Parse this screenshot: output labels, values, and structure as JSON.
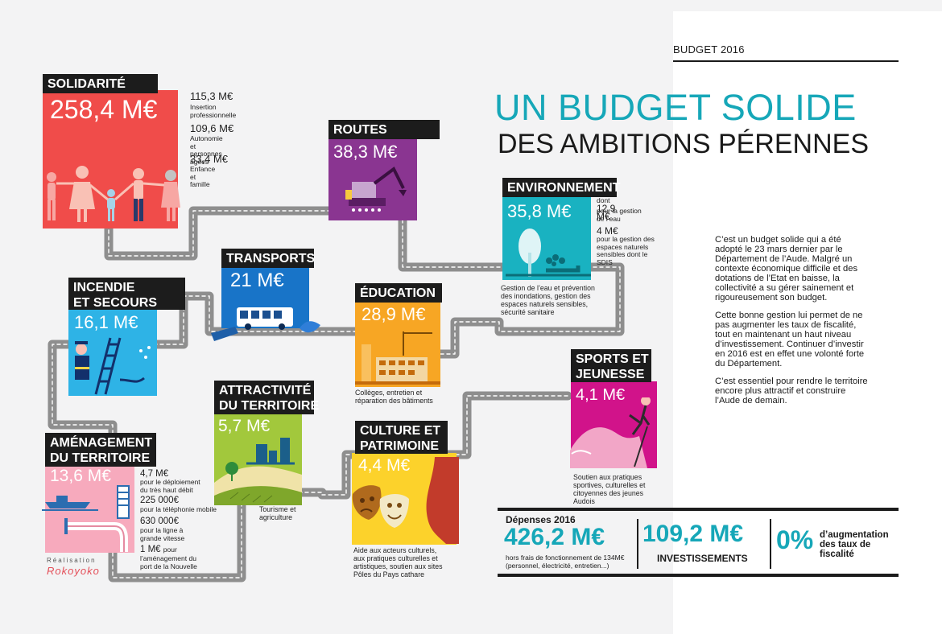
{
  "header": {
    "section": "BUDGET 2016",
    "title_line1": "UN BUDGET SOLIDE",
    "title_line2": "DES AMBITIONS PÉRENNES"
  },
  "intro": {
    "p1": "C’est un budget solide qui a été adopté le 23 mars dernier par le Département de l’Aude. Malgré un contexte économique difficile et des dotations de l’Etat en baisse, la collectivité a su gérer sainement et rigoureusement son budget.",
    "p2": "Cette bonne gestion lui permet de ne pas augmenter les taux de fiscalité, tout en maintenant un haut niveau d’investissement. Continuer d’investir en 2016 est en effet une volonté forte du Département.",
    "p3": "C’est essentiel pour rendre le territoire encore plus attractif et construire l’Aude de demain."
  },
  "colors": {
    "solidarite": "#f04c4a",
    "routes": "#8a3591",
    "environnement": "#19b2c1",
    "transports": "#1874c8",
    "education": "#f7a624",
    "incendie": "#2eb3e6",
    "sports": "#d1138a",
    "attractivite": "#a2c83c",
    "culture": "#fcd22b",
    "amenagement": "#f7aabd",
    "accent": "#16a7b8",
    "label_bg": "#1c1c1c"
  },
  "cards": {
    "solidarite": {
      "label": "SOLIDARITÉ",
      "amount": "258,4 M€",
      "sub": [
        {
          "value": "115,3 M€",
          "desc": "Insertion professionnelle"
        },
        {
          "value": "109,6 M€",
          "desc": "Autonomie et personnes âgées"
        },
        {
          "value": "33,4 M€",
          "desc": "Enfance et famille"
        }
      ]
    },
    "routes": {
      "label": "ROUTES",
      "amount": "38,3 M€"
    },
    "environnement": {
      "label": "ENVIRONNEMENT",
      "amount": "35,8 M€",
      "sub": [
        {
          "prefix": "dont ",
          "value": "12,9 M€",
          "desc": "pour la gestion de l’eau"
        },
        {
          "value": "4 M€",
          "desc": "pour la gestion des espaces naturels sensibles dont le SDIS"
        }
      ],
      "note": "Gestion de l’eau et prévention des inondations, gestion des espaces naturels sensibles, sécurité sanitaire"
    },
    "transports": {
      "label": "TRANSPORTS",
      "amount": "21 M€"
    },
    "education": {
      "label": "ÉDUCATION",
      "amount": "28,9 M€",
      "note": "Collèges, entretien et réparation des bâtiments"
    },
    "incendie": {
      "label_line1": "INCENDIE",
      "label_line2": "ET SECOURS",
      "amount": "16,1 M€"
    },
    "sports": {
      "label_line1": "SPORTS ET",
      "label_line2": "JEUNESSE",
      "amount": "4,1 M€",
      "note": "Soutien aux pratiques sportives, culturelles et citoyennes des jeunes Audois"
    },
    "attractivite": {
      "label_line1": "ATTRACTIVITÉ",
      "label_line2": "DU TERRITOIRE",
      "amount": "5,7 M€",
      "note": "Tourisme et agriculture"
    },
    "culture": {
      "label_line1": "CULTURE ET",
      "label_line2": "PATRIMOINE",
      "amount": "4,4 M€",
      "note": "Aide aux acteurs culturels, aux pratiques culturelles et artistiques, soutien aux sites Pôles du Pays cathare"
    },
    "amenagement": {
      "label_line1": "AMÉNAGEMENT",
      "label_line2": "DU TERRITOIRE",
      "amount": "13,6 M€",
      "sub": [
        {
          "value": "4,7 M€",
          "desc": "pour le déploiement du très haut débit"
        },
        {
          "value": "225 000€",
          "desc": "pour la téléphonie mobile"
        },
        {
          "value": "630 000€",
          "desc": "pour la ligne à grande vitesse"
        },
        {
          "value": "1 M€",
          "desc_inline": "pour",
          "desc": "l’aménagement du port de la Nouvelle"
        }
      ]
    }
  },
  "totals": {
    "depenses_label": "Dépenses 2016",
    "depenses_value": "426,2 M€",
    "depenses_note": "hors frais de fonctionnement de 134M€ (personnel, électricité, entretien...)",
    "invest_value": "109,2 M€",
    "invest_label": "INVESTISSEMENTS",
    "taux_value": "0%",
    "taux_label": "d’augmentation des taux de fiscalité"
  },
  "credit": {
    "line1": "Réalisation",
    "line2": "Rokoyoko"
  }
}
